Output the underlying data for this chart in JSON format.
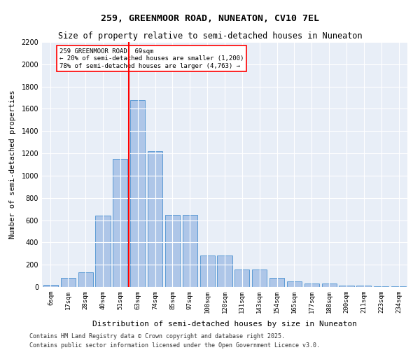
{
  "title1": "259, GREENMOOR ROAD, NUNEATON, CV10 7EL",
  "title2": "Size of property relative to semi-detached houses in Nuneaton",
  "xlabel": "Distribution of semi-detached houses by size in Nuneaton",
  "ylabel": "Number of semi-detached properties",
  "categories": [
    "6sqm",
    "17sqm",
    "28sqm",
    "40sqm",
    "51sqm",
    "63sqm",
    "74sqm",
    "85sqm",
    "97sqm",
    "108sqm",
    "120sqm",
    "131sqm",
    "143sqm",
    "154sqm",
    "165sqm",
    "177sqm",
    "188sqm",
    "200sqm",
    "211sqm",
    "223sqm",
    "234sqm"
  ],
  "values": [
    20,
    80,
    130,
    640,
    1150,
    1680,
    1220,
    650,
    650,
    280,
    280,
    155,
    155,
    80,
    50,
    30,
    30,
    15,
    10,
    5,
    5
  ],
  "bar_color": "#aec6e8",
  "bar_edge_color": "#5b9bd5",
  "vline_x": 4,
  "vline_color": "red",
  "annotation_text": "259 GREENMOOR ROAD: 69sqm\n← 20% of semi-detached houses are smaller (1,200)\n78% of semi-detached houses are larger (4,763) →",
  "annotation_box_color": "white",
  "annotation_box_edge": "red",
  "ylim": [
    0,
    2200
  ],
  "yticks": [
    0,
    200,
    400,
    600,
    800,
    1000,
    1200,
    1400,
    1600,
    1800,
    2000,
    2200
  ],
  "bg_color": "#e8eef7",
  "footer1": "Contains HM Land Registry data © Crown copyright and database right 2025.",
  "footer2": "Contains public sector information licensed under the Open Government Licence v3.0."
}
